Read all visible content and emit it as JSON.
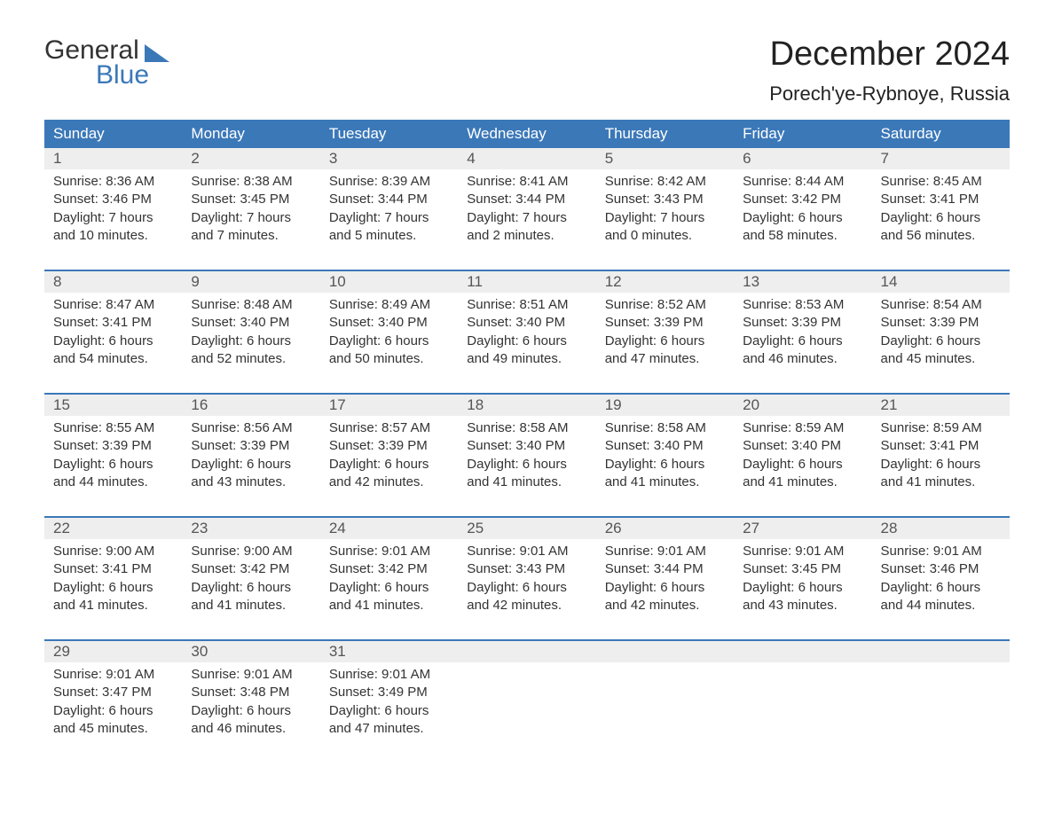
{
  "brand": {
    "word1": "General",
    "word2": "Blue",
    "accent_color": "#3b78b8"
  },
  "title": "December 2024",
  "location": "Porech'ye-Rybnoye, Russia",
  "weekday_labels": [
    "Sunday",
    "Monday",
    "Tuesday",
    "Wednesday",
    "Thursday",
    "Friday",
    "Saturday"
  ],
  "colors": {
    "header_bg": "#3b78b8",
    "header_text": "#ffffff",
    "daynum_bg": "#eeeeee",
    "text": "#333333",
    "page_bg": "#ffffff"
  },
  "typography": {
    "title_fontsize": 38,
    "location_fontsize": 22,
    "weekday_fontsize": 17,
    "daynum_fontsize": 17,
    "body_fontsize": 15,
    "logo_fontsize": 30
  },
  "weeks": [
    [
      {
        "day": "1",
        "sunrise": "Sunrise: 8:36 AM",
        "sunset": "Sunset: 3:46 PM",
        "daylight1": "Daylight: 7 hours",
        "daylight2": "and 10 minutes."
      },
      {
        "day": "2",
        "sunrise": "Sunrise: 8:38 AM",
        "sunset": "Sunset: 3:45 PM",
        "daylight1": "Daylight: 7 hours",
        "daylight2": "and 7 minutes."
      },
      {
        "day": "3",
        "sunrise": "Sunrise: 8:39 AM",
        "sunset": "Sunset: 3:44 PM",
        "daylight1": "Daylight: 7 hours",
        "daylight2": "and 5 minutes."
      },
      {
        "day": "4",
        "sunrise": "Sunrise: 8:41 AM",
        "sunset": "Sunset: 3:44 PM",
        "daylight1": "Daylight: 7 hours",
        "daylight2": "and 2 minutes."
      },
      {
        "day": "5",
        "sunrise": "Sunrise: 8:42 AM",
        "sunset": "Sunset: 3:43 PM",
        "daylight1": "Daylight: 7 hours",
        "daylight2": "and 0 minutes."
      },
      {
        "day": "6",
        "sunrise": "Sunrise: 8:44 AM",
        "sunset": "Sunset: 3:42 PM",
        "daylight1": "Daylight: 6 hours",
        "daylight2": "and 58 minutes."
      },
      {
        "day": "7",
        "sunrise": "Sunrise: 8:45 AM",
        "sunset": "Sunset: 3:41 PM",
        "daylight1": "Daylight: 6 hours",
        "daylight2": "and 56 minutes."
      }
    ],
    [
      {
        "day": "8",
        "sunrise": "Sunrise: 8:47 AM",
        "sunset": "Sunset: 3:41 PM",
        "daylight1": "Daylight: 6 hours",
        "daylight2": "and 54 minutes."
      },
      {
        "day": "9",
        "sunrise": "Sunrise: 8:48 AM",
        "sunset": "Sunset: 3:40 PM",
        "daylight1": "Daylight: 6 hours",
        "daylight2": "and 52 minutes."
      },
      {
        "day": "10",
        "sunrise": "Sunrise: 8:49 AM",
        "sunset": "Sunset: 3:40 PM",
        "daylight1": "Daylight: 6 hours",
        "daylight2": "and 50 minutes."
      },
      {
        "day": "11",
        "sunrise": "Sunrise: 8:51 AM",
        "sunset": "Sunset: 3:40 PM",
        "daylight1": "Daylight: 6 hours",
        "daylight2": "and 49 minutes."
      },
      {
        "day": "12",
        "sunrise": "Sunrise: 8:52 AM",
        "sunset": "Sunset: 3:39 PM",
        "daylight1": "Daylight: 6 hours",
        "daylight2": "and 47 minutes."
      },
      {
        "day": "13",
        "sunrise": "Sunrise: 8:53 AM",
        "sunset": "Sunset: 3:39 PM",
        "daylight1": "Daylight: 6 hours",
        "daylight2": "and 46 minutes."
      },
      {
        "day": "14",
        "sunrise": "Sunrise: 8:54 AM",
        "sunset": "Sunset: 3:39 PM",
        "daylight1": "Daylight: 6 hours",
        "daylight2": "and 45 minutes."
      }
    ],
    [
      {
        "day": "15",
        "sunrise": "Sunrise: 8:55 AM",
        "sunset": "Sunset: 3:39 PM",
        "daylight1": "Daylight: 6 hours",
        "daylight2": "and 44 minutes."
      },
      {
        "day": "16",
        "sunrise": "Sunrise: 8:56 AM",
        "sunset": "Sunset: 3:39 PM",
        "daylight1": "Daylight: 6 hours",
        "daylight2": "and 43 minutes."
      },
      {
        "day": "17",
        "sunrise": "Sunrise: 8:57 AM",
        "sunset": "Sunset: 3:39 PM",
        "daylight1": "Daylight: 6 hours",
        "daylight2": "and 42 minutes."
      },
      {
        "day": "18",
        "sunrise": "Sunrise: 8:58 AM",
        "sunset": "Sunset: 3:40 PM",
        "daylight1": "Daylight: 6 hours",
        "daylight2": "and 41 minutes."
      },
      {
        "day": "19",
        "sunrise": "Sunrise: 8:58 AM",
        "sunset": "Sunset: 3:40 PM",
        "daylight1": "Daylight: 6 hours",
        "daylight2": "and 41 minutes."
      },
      {
        "day": "20",
        "sunrise": "Sunrise: 8:59 AM",
        "sunset": "Sunset: 3:40 PM",
        "daylight1": "Daylight: 6 hours",
        "daylight2": "and 41 minutes."
      },
      {
        "day": "21",
        "sunrise": "Sunrise: 8:59 AM",
        "sunset": "Sunset: 3:41 PM",
        "daylight1": "Daylight: 6 hours",
        "daylight2": "and 41 minutes."
      }
    ],
    [
      {
        "day": "22",
        "sunrise": "Sunrise: 9:00 AM",
        "sunset": "Sunset: 3:41 PM",
        "daylight1": "Daylight: 6 hours",
        "daylight2": "and 41 minutes."
      },
      {
        "day": "23",
        "sunrise": "Sunrise: 9:00 AM",
        "sunset": "Sunset: 3:42 PM",
        "daylight1": "Daylight: 6 hours",
        "daylight2": "and 41 minutes."
      },
      {
        "day": "24",
        "sunrise": "Sunrise: 9:01 AM",
        "sunset": "Sunset: 3:42 PM",
        "daylight1": "Daylight: 6 hours",
        "daylight2": "and 41 minutes."
      },
      {
        "day": "25",
        "sunrise": "Sunrise: 9:01 AM",
        "sunset": "Sunset: 3:43 PM",
        "daylight1": "Daylight: 6 hours",
        "daylight2": "and 42 minutes."
      },
      {
        "day": "26",
        "sunrise": "Sunrise: 9:01 AM",
        "sunset": "Sunset: 3:44 PM",
        "daylight1": "Daylight: 6 hours",
        "daylight2": "and 42 minutes."
      },
      {
        "day": "27",
        "sunrise": "Sunrise: 9:01 AM",
        "sunset": "Sunset: 3:45 PM",
        "daylight1": "Daylight: 6 hours",
        "daylight2": "and 43 minutes."
      },
      {
        "day": "28",
        "sunrise": "Sunrise: 9:01 AM",
        "sunset": "Sunset: 3:46 PM",
        "daylight1": "Daylight: 6 hours",
        "daylight2": "and 44 minutes."
      }
    ],
    [
      {
        "day": "29",
        "sunrise": "Sunrise: 9:01 AM",
        "sunset": "Sunset: 3:47 PM",
        "daylight1": "Daylight: 6 hours",
        "daylight2": "and 45 minutes."
      },
      {
        "day": "30",
        "sunrise": "Sunrise: 9:01 AM",
        "sunset": "Sunset: 3:48 PM",
        "daylight1": "Daylight: 6 hours",
        "daylight2": "and 46 minutes."
      },
      {
        "day": "31",
        "sunrise": "Sunrise: 9:01 AM",
        "sunset": "Sunset: 3:49 PM",
        "daylight1": "Daylight: 6 hours",
        "daylight2": "and 47 minutes."
      },
      {
        "day": "",
        "sunrise": "",
        "sunset": "",
        "daylight1": "",
        "daylight2": ""
      },
      {
        "day": "",
        "sunrise": "",
        "sunset": "",
        "daylight1": "",
        "daylight2": ""
      },
      {
        "day": "",
        "sunrise": "",
        "sunset": "",
        "daylight1": "",
        "daylight2": ""
      },
      {
        "day": "",
        "sunrise": "",
        "sunset": "",
        "daylight1": "",
        "daylight2": ""
      }
    ]
  ]
}
